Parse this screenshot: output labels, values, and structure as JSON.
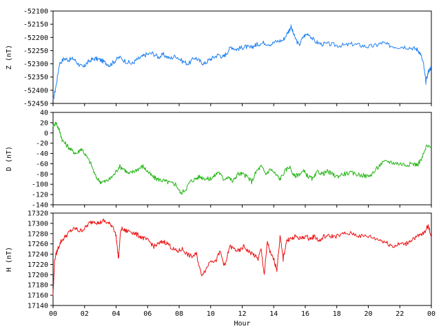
{
  "chart_data": [
    {
      "type": "line",
      "ylabel": "Z (nT)",
      "ylim": [
        -52450,
        -52100
      ],
      "yticks": [
        -52100,
        -52150,
        -52200,
        -52250,
        -52300,
        -52350,
        -52400,
        -52450
      ],
      "xlim": [
        0,
        24
      ],
      "series": [
        {
          "color": "#1e7ff0",
          "x": [
            0,
            0.2,
            0.4,
            0.7,
            1.0,
            1.3,
            1.6,
            1.9,
            2.1,
            2.4,
            2.7,
            3.0,
            3.3,
            3.6,
            3.9,
            4.2,
            4.6,
            5.0,
            5.3,
            5.6,
            5.9,
            6.3,
            6.7,
            7.0,
            7.4,
            7.8,
            8.2,
            8.6,
            9.0,
            9.3,
            9.6,
            9.9,
            10.2,
            10.5,
            10.8,
            11.0,
            11.3,
            11.6,
            11.9,
            12.2,
            12.5,
            12.8,
            13.0,
            13.4,
            13.8,
            14.2,
            14.6,
            14.9,
            15.1,
            15.3,
            15.6,
            15.9,
            16.2,
            16.6,
            17.0,
            17.5,
            18.0,
            18.5,
            19.0,
            19.5,
            20.0,
            20.5,
            20.9,
            21.3,
            21.8,
            22.3,
            22.8,
            23.1,
            23.3,
            23.5,
            23.65,
            23.8,
            24.0
          ],
          "values": [
            -52440,
            -52380,
            -52300,
            -52280,
            -52285,
            -52280,
            -52300,
            -52315,
            -52300,
            -52285,
            -52280,
            -52285,
            -52295,
            -52305,
            -52290,
            -52275,
            -52290,
            -52300,
            -52285,
            -52275,
            -52265,
            -52260,
            -52275,
            -52265,
            -52280,
            -52270,
            -52290,
            -52300,
            -52275,
            -52290,
            -52300,
            -52285,
            -52275,
            -52265,
            -52275,
            -52260,
            -52235,
            -52245,
            -52240,
            -52235,
            -52240,
            -52230,
            -52225,
            -52220,
            -52225,
            -52215,
            -52210,
            -52180,
            -52160,
            -52195,
            -52230,
            -52195,
            -52185,
            -52215,
            -52225,
            -52225,
            -52230,
            -52230,
            -52225,
            -52230,
            -52235,
            -52230,
            -52220,
            -52230,
            -52235,
            -52235,
            -52240,
            -52245,
            -52260,
            -52300,
            -52370,
            -52330,
            -52310
          ]
        }
      ]
    },
    {
      "type": "line",
      "ylabel": "D (nT)",
      "ylim": [
        -140,
        40
      ],
      "yticks": [
        40,
        20,
        0,
        -20,
        -40,
        -60,
        -80,
        -100,
        -120,
        -140
      ],
      "xlim": [
        0,
        24
      ],
      "series": [
        {
          "color": "#22b512",
          "x": [
            0,
            0.2,
            0.4,
            0.6,
            0.9,
            1.2,
            1.5,
            1.8,
            2.1,
            2.4,
            2.7,
            3.0,
            3.3,
            3.6,
            3.9,
            4.2,
            4.5,
            4.8,
            5.1,
            5.4,
            5.7,
            6.0,
            6.3,
            6.6,
            6.9,
            7.2,
            7.5,
            7.8,
            8.1,
            8.4,
            8.7,
            9.0,
            9.3,
            9.6,
            9.9,
            10.2,
            10.5,
            10.8,
            11.1,
            11.4,
            11.7,
            12.0,
            12.3,
            12.6,
            12.9,
            13.2,
            13.5,
            13.8,
            14.1,
            14.4,
            14.7,
            15.0,
            15.3,
            15.6,
            15.9,
            16.2,
            16.5,
            16.8,
            17.1,
            17.4,
            17.7,
            18.0,
            18.4,
            18.8,
            19.2,
            19.6,
            20.0,
            20.4,
            20.8,
            21.2,
            21.6,
            22.0,
            22.4,
            22.8,
            23.1,
            23.4,
            23.7,
            24.0
          ],
          "values": [
            15,
            20,
            5,
            -15,
            -25,
            -35,
            -40,
            -30,
            -45,
            -60,
            -85,
            -95,
            -95,
            -90,
            -80,
            -65,
            -70,
            -80,
            -75,
            -70,
            -65,
            -75,
            -85,
            -90,
            -92,
            -95,
            -98,
            -100,
            -118,
            -110,
            -95,
            -90,
            -85,
            -88,
            -90,
            -85,
            -75,
            -90,
            -85,
            -95,
            -80,
            -80,
            -85,
            -95,
            -75,
            -65,
            -80,
            -70,
            -80,
            -90,
            -75,
            -65,
            -85,
            -80,
            -75,
            -85,
            -90,
            -75,
            -80,
            -75,
            -80,
            -85,
            -80,
            -78,
            -80,
            -82,
            -85,
            -75,
            -60,
            -55,
            -58,
            -60,
            -62,
            -60,
            -62,
            -50,
            -25,
            -30
          ]
        }
      ]
    },
    {
      "type": "line",
      "ylabel": "H (nT)",
      "ylim": [
        17140,
        17320
      ],
      "yticks": [
        17320,
        17300,
        17280,
        17260,
        17240,
        17220,
        17200,
        17180,
        17160,
        17140
      ],
      "xlim": [
        0,
        24
      ],
      "xticks": [
        "00",
        "02",
        "04",
        "06",
        "08",
        "10",
        "12",
        "14",
        "16",
        "18",
        "20",
        "22",
        "00"
      ],
      "xlabel": "Hour",
      "series": [
        {
          "color": "#ee1010",
          "x": [
            0,
            0.1,
            0.3,
            0.5,
            0.8,
            1.1,
            1.4,
            1.7,
            2.0,
            2.3,
            2.6,
            2.9,
            3.2,
            3.5,
            3.8,
            4.0,
            4.15,
            4.3,
            4.6,
            4.9,
            5.2,
            5.5,
            5.8,
            6.1,
            6.4,
            6.7,
            7.0,
            7.3,
            7.6,
            7.9,
            8.2,
            8.5,
            8.8,
            9.1,
            9.4,
            9.7,
            10.0,
            10.3,
            10.6,
            10.9,
            11.2,
            11.5,
            11.8,
            12.1,
            12.4,
            12.7,
            13.0,
            13.2,
            13.4,
            13.6,
            13.8,
            14.0,
            14.2,
            14.4,
            14.6,
            14.8,
            15.0,
            15.2,
            15.4,
            15.7,
            16.0,
            16.3,
            16.6,
            16.9,
            17.2,
            17.6,
            18.0,
            18.5,
            19.0,
            19.5,
            20.0,
            20.5,
            21.0,
            21.3,
            21.6,
            22.0,
            22.4,
            22.8,
            23.2,
            23.5,
            23.8,
            24.0
          ],
          "values": [
            17160,
            17230,
            17250,
            17265,
            17275,
            17285,
            17290,
            17285,
            17290,
            17300,
            17305,
            17300,
            17305,
            17300,
            17295,
            17275,
            17230,
            17290,
            17285,
            17285,
            17280,
            17275,
            17270,
            17265,
            17255,
            17260,
            17265,
            17260,
            17250,
            17245,
            17250,
            17240,
            17235,
            17240,
            17200,
            17210,
            17230,
            17225,
            17245,
            17215,
            17255,
            17250,
            17245,
            17255,
            17245,
            17240,
            17230,
            17250,
            17200,
            17265,
            17240,
            17230,
            17210,
            17275,
            17230,
            17265,
            17270,
            17270,
            17275,
            17270,
            17275,
            17270,
            17275,
            17265,
            17275,
            17275,
            17275,
            17280,
            17280,
            17275,
            17275,
            17270,
            17265,
            17260,
            17255,
            17260,
            17260,
            17270,
            17275,
            17280,
            17295,
            17275
          ]
        }
      ]
    }
  ]
}
